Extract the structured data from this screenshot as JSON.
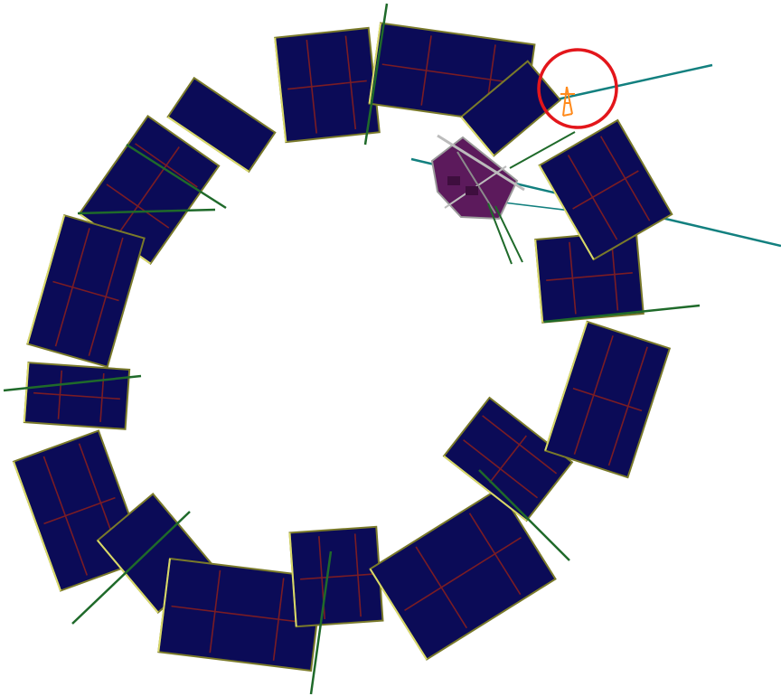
{
  "scene": {
    "background": "#ffffff",
    "colors": {
      "segment_fill": "#0b0b57",
      "segment_rib": "#7a1c24",
      "segment_edge": "#7a7a2a",
      "beamline": "#13807f",
      "support_pole": "#1f6a2a",
      "marker_circle": "#e3161b",
      "marker_figure": "#ff8a1c",
      "device_body": "#5c1a5c",
      "device_frame": "#9a9a9a"
    },
    "marker": {
      "label": "highlight-circle"
    }
  }
}
